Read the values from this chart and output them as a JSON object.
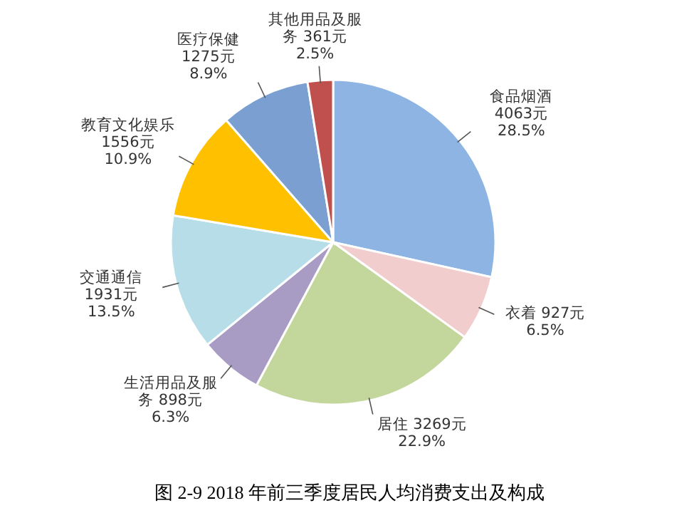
{
  "chart_data": {
    "type": "pie",
    "title": "图 2-9 2018 年前三季度居民人均消费支出及构成",
    "categories": [
      "食品烟酒",
      "衣着",
      "居住",
      "生活用品及服务",
      "交通通信",
      "教育文化娱乐",
      "医疗保健",
      "其他用品及服务"
    ],
    "values": [
      4063,
      927,
      3269,
      898,
      1931,
      1556,
      1275,
      361
    ],
    "value_labels": [
      "4063元\n28.5%",
      "927元\n6.5%",
      "3269元\n22.9%",
      "898元\n6.3%",
      "1931元\n13.5%",
      "1556元\n10.9%",
      "1275元\n8.9%",
      "361元\n2.5%"
    ],
    "colors": [
      "#8db4e2",
      "#f2cdcd",
      "#c3d69b",
      "#a89bc4",
      "#b7dee8",
      "#ffc000",
      "#7a9fd0",
      "#c0504d"
    ]
  }
}
